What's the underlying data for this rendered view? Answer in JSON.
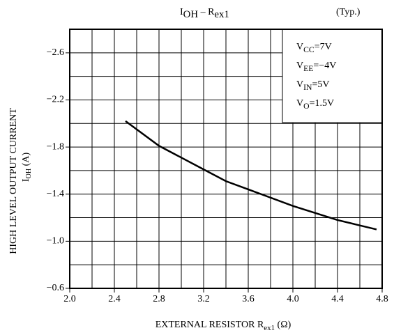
{
  "chart_data": {
    "type": "line",
    "title": [
      {
        "text": "I"
      },
      {
        "text": "OH",
        "sub": true
      },
      {
        "text": " – R"
      },
      {
        "text": "ex1",
        "sub": true
      }
    ],
    "annotation": "(Typ.)",
    "conditions": [
      [
        {
          "text": "V"
        },
        {
          "text": "CC",
          "sub": true
        },
        {
          "text": "=7V"
        }
      ],
      [
        {
          "text": "V"
        },
        {
          "text": "EE",
          "sub": true
        },
        {
          "text": "=−4V"
        }
      ],
      [
        {
          "text": "V"
        },
        {
          "text": "IN",
          "sub": true
        },
        {
          "text": "=5V"
        }
      ],
      [
        {
          "text": "V"
        },
        {
          "text": "O",
          "sub": true
        },
        {
          "text": "=1.5V"
        }
      ]
    ],
    "xlabel": [
      {
        "text": "EXTERNAL RESISTOR  R"
      },
      {
        "text": "ex1",
        "sub": true
      },
      {
        "text": "   (Ω)"
      }
    ],
    "ylabel": [
      [
        {
          "text": "HIGH LEVEL OUTPUT CURRENT"
        }
      ],
      [
        {
          "text": "I"
        },
        {
          "text": "OH",
          "sub": true
        },
        {
          "text": "  (A)"
        }
      ]
    ],
    "x": [
      2.5,
      2.8,
      3.2,
      3.4,
      3.6,
      4.0,
      4.2,
      4.4,
      4.75
    ],
    "series": [
      {
        "name": "IOH",
        "color": "#000000",
        "values": [
          -2.02,
          -1.81,
          -1.61,
          -1.51,
          -1.44,
          -1.3,
          -1.24,
          -1.18,
          -1.1
        ]
      }
    ],
    "xlim": [
      2.0,
      4.8
    ],
    "ylim": [
      -0.6,
      -2.8
    ],
    "xticks": [
      {
        "value": 2.0,
        "label": "2.0"
      },
      2.4,
      2.8,
      3.2,
      3.6,
      {
        "value": 4.0,
        "label": "4.0"
      },
      4.4,
      4.8
    ],
    "yticks": [
      {
        "value": -0.6,
        "label": "−0.6"
      },
      {
        "value": -1.0,
        "label": "−1.0"
      },
      {
        "value": -1.4,
        "label": "−1.4"
      },
      {
        "value": -1.8,
        "label": "−1.8"
      },
      {
        "value": -2.2,
        "label": "−2.2"
      },
      {
        "value": -2.6,
        "label": "−2.6"
      }
    ],
    "minor_xticks": [
      2.2,
      2.6,
      3.0,
      3.4,
      3.8,
      4.2,
      4.6
    ],
    "minor_yticks": [
      -0.8,
      -1.2,
      -1.6,
      -2.0,
      -2.4
    ],
    "grid": true
  }
}
